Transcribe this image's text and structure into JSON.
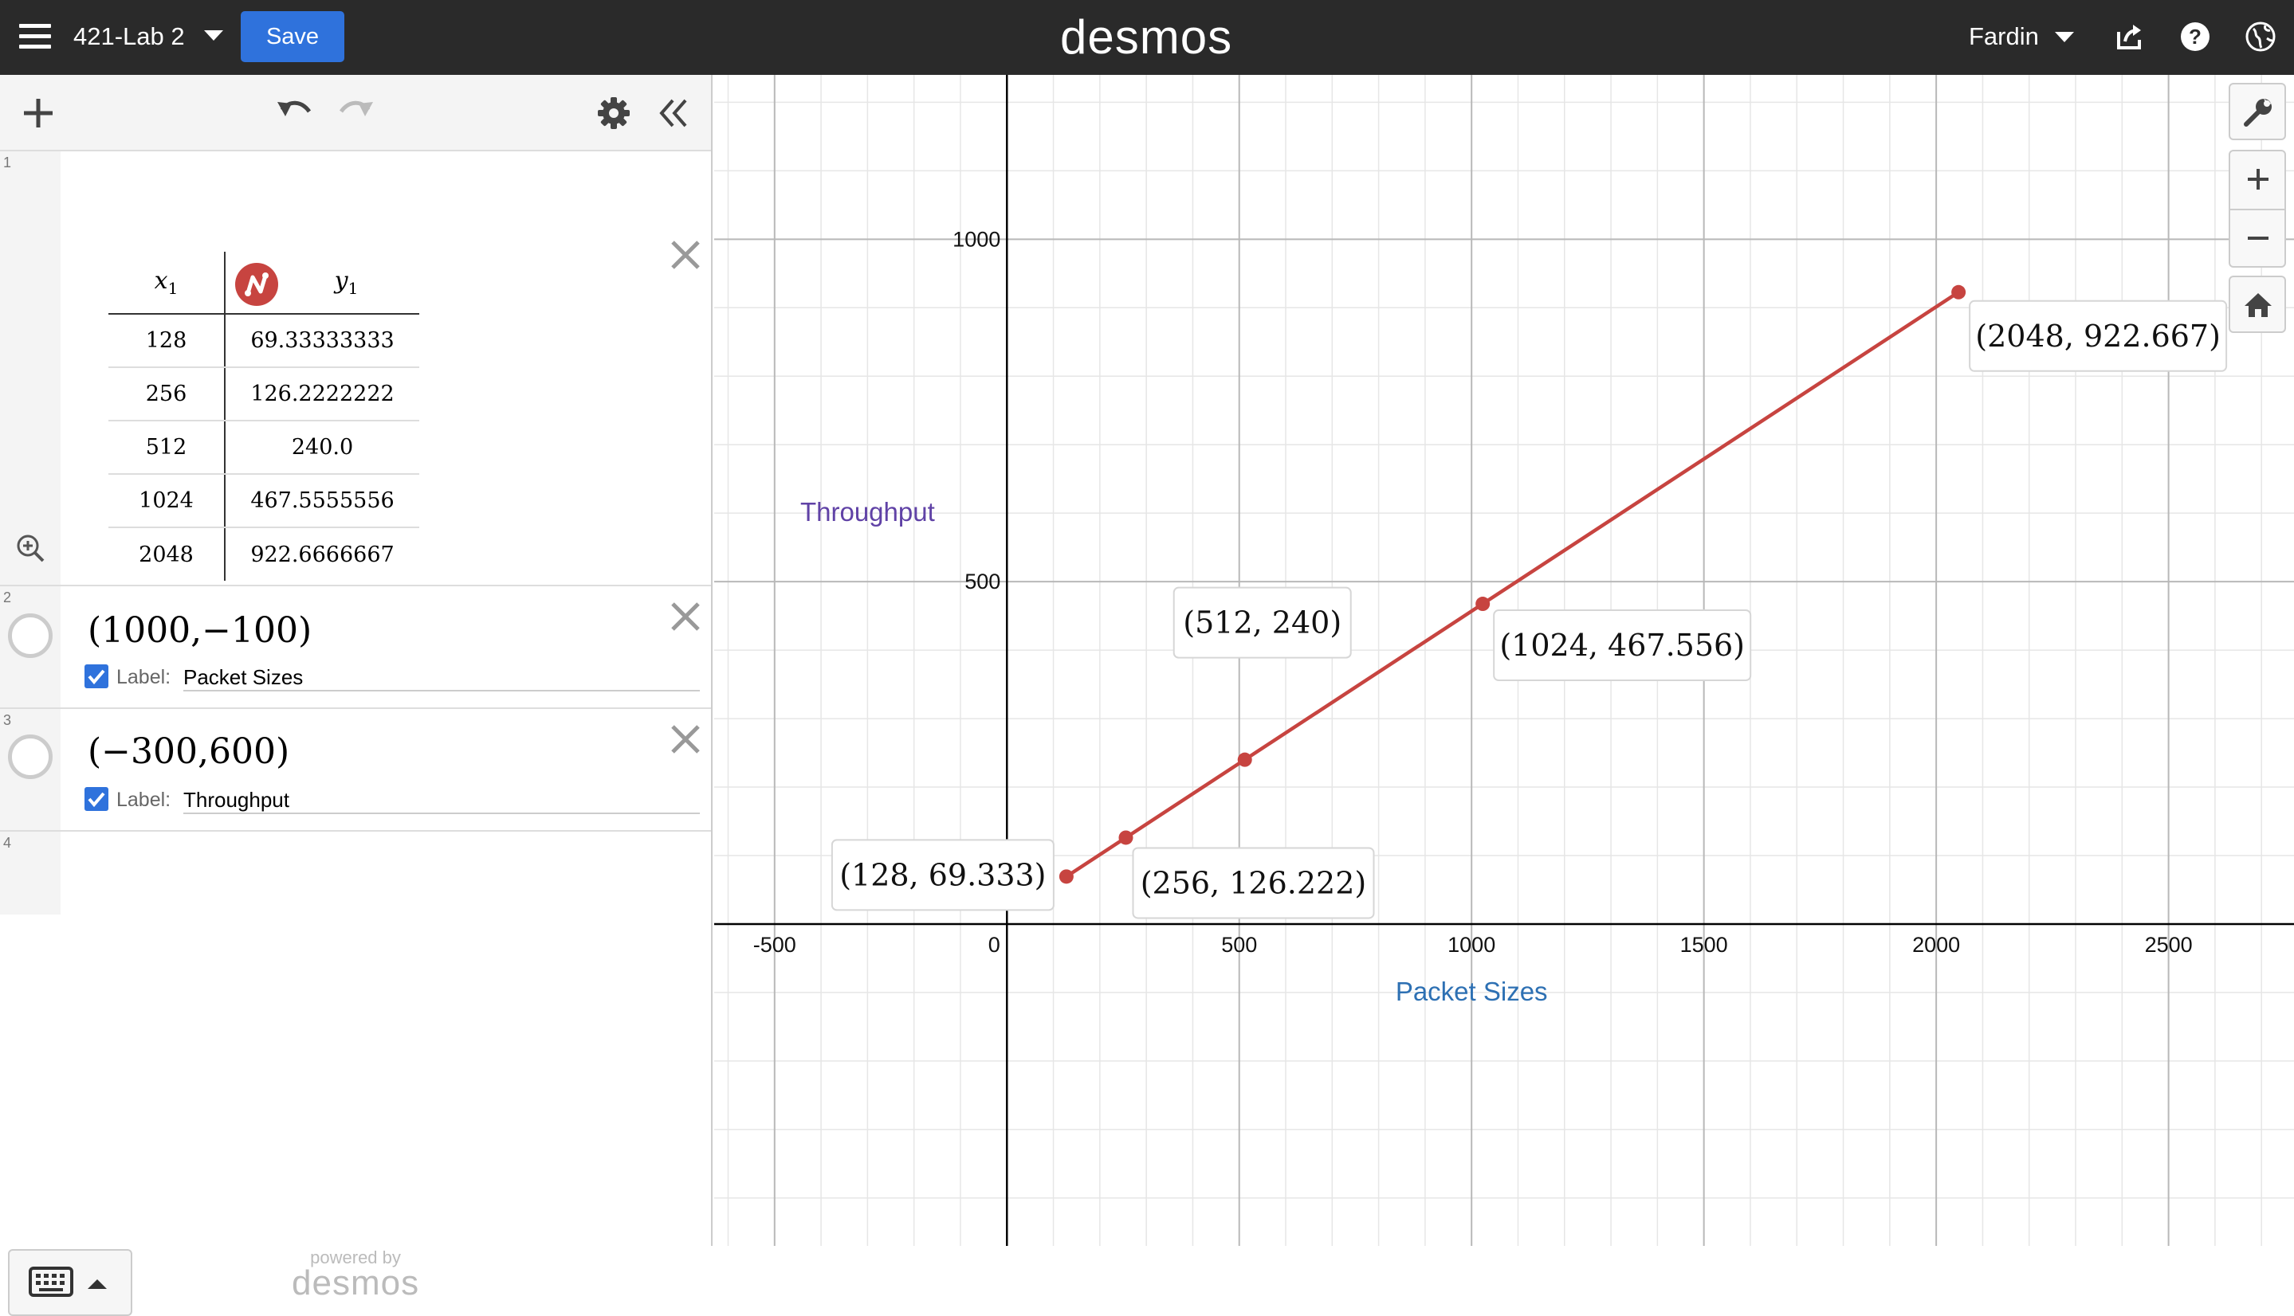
{
  "header": {
    "graph_title": "421-Lab 2",
    "save_label": "Save",
    "brand": "desmos",
    "user_name": "Fardin"
  },
  "expressions": {
    "e1": {
      "index": "1",
      "col_x": "x",
      "col_x_sub": "1",
      "col_y": "y",
      "col_y_sub": "1",
      "rows": [
        [
          "128",
          "69.33333333"
        ],
        [
          "256",
          "126.2222222"
        ],
        [
          "512",
          "240.0"
        ],
        [
          "1024",
          "467.5555556"
        ],
        [
          "2048",
          "922.6666667"
        ]
      ]
    },
    "e2": {
      "index": "2",
      "math": "(1000,−100)",
      "label_title": "Label:",
      "label_value": "Packet Sizes"
    },
    "e3": {
      "index": "3",
      "math": "(−300,600)",
      "label_title": "Label:",
      "label_value": "Throughput"
    },
    "e4": {
      "index": "4"
    }
  },
  "footer": {
    "powered_small": "powered by",
    "powered_brand": "desmos"
  },
  "colors": {
    "series": "#c74440",
    "label_x": "#2d70b3",
    "label_y": "#6042a6"
  },
  "chart_data": {
    "type": "line",
    "x": [
      128,
      256,
      512,
      1024,
      2048
    ],
    "y": [
      69.333,
      126.222,
      240,
      467.556,
      922.667
    ],
    "point_labels": [
      "(128, 69.333)",
      "(256, 126.222)",
      "(512, 240)",
      "(1024, 467.556)",
      "(2048, 922.667)"
    ],
    "x_ticks": [
      "-500",
      "0",
      "500",
      "1000",
      "1500",
      "2000",
      "2500"
    ],
    "y_ticks": [
      "500",
      "1000"
    ],
    "xlim": [
      -630,
      2770
    ],
    "ylim": [
      -470,
      1240
    ],
    "grid": true,
    "annotations": [
      {
        "text": "Packet Sizes",
        "x": 1000,
        "y": -100
      },
      {
        "text": "Throughput",
        "x": -300,
        "y": 600
      }
    ]
  }
}
